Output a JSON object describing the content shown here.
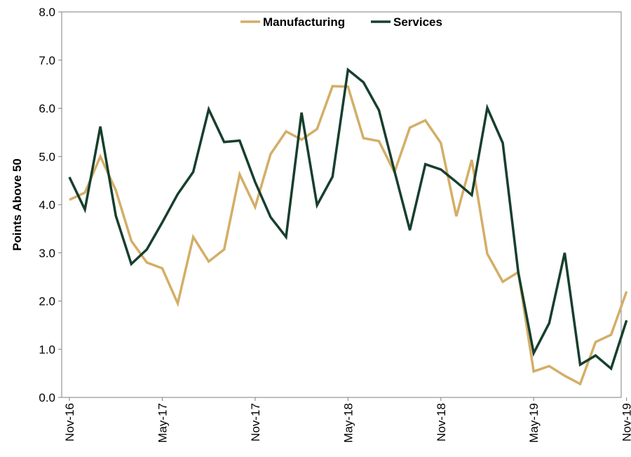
{
  "chart_data": {
    "type": "line",
    "title": "",
    "xlabel": "",
    "ylabel": "Points Above 50",
    "ylim": [
      0,
      8
    ],
    "yticks": [
      "0.0",
      "1.0",
      "2.0",
      "3.0",
      "4.0",
      "5.0",
      "6.0",
      "7.0",
      "8.0"
    ],
    "x": [
      "Nov-16",
      "Dec-16",
      "Jan-17",
      "Feb-17",
      "Mar-17",
      "Apr-17",
      "May-17",
      "Jun-17",
      "Jul-17",
      "Aug-17",
      "Sep-17",
      "Oct-17",
      "Nov-17",
      "Dec-17",
      "Jan-18",
      "Feb-18",
      "Mar-18",
      "Apr-18",
      "May-18",
      "Jun-18",
      "Jul-18",
      "Aug-18",
      "Sep-18",
      "Oct-18",
      "Nov-18",
      "Dec-18",
      "Jan-19",
      "Feb-19",
      "Mar-19",
      "Apr-19",
      "May-19",
      "Jun-19",
      "Jul-19",
      "Aug-19",
      "Sep-19",
      "Oct-19",
      "Nov-19"
    ],
    "xtick_labels": [
      "Nov-16",
      "May-17",
      "Nov-17",
      "May-18",
      "Nov-18",
      "May-19",
      "Nov-19"
    ],
    "legend_position": "top-center",
    "grid": false,
    "series": [
      {
        "name": "Manufacturing",
        "color": "#D4AE67",
        "values": [
          4.1,
          4.25,
          5.0,
          4.3,
          3.25,
          2.8,
          2.68,
          1.95,
          3.33,
          2.82,
          3.07,
          4.63,
          3.95,
          5.05,
          5.52,
          5.35,
          5.57,
          6.46,
          6.45,
          5.38,
          5.32,
          4.67,
          5.6,
          5.75,
          5.28,
          3.76,
          4.93,
          2.98,
          2.4,
          2.6,
          0.54,
          0.65,
          0.45,
          0.28,
          1.15,
          1.3,
          2.2
        ]
      },
      {
        "name": "Services",
        "color": "#173F2D",
        "values": [
          4.57,
          3.9,
          5.62,
          3.77,
          2.77,
          3.07,
          3.63,
          4.22,
          4.68,
          5.98,
          5.3,
          5.33,
          4.47,
          3.74,
          3.33,
          5.91,
          3.99,
          4.58,
          6.8,
          6.54,
          5.96,
          4.7,
          3.47,
          4.84,
          4.73,
          4.47,
          4.2,
          6.01,
          5.28,
          2.6,
          0.92,
          1.54,
          3.0,
          0.68,
          0.87,
          0.6,
          1.6
        ]
      }
    ]
  }
}
